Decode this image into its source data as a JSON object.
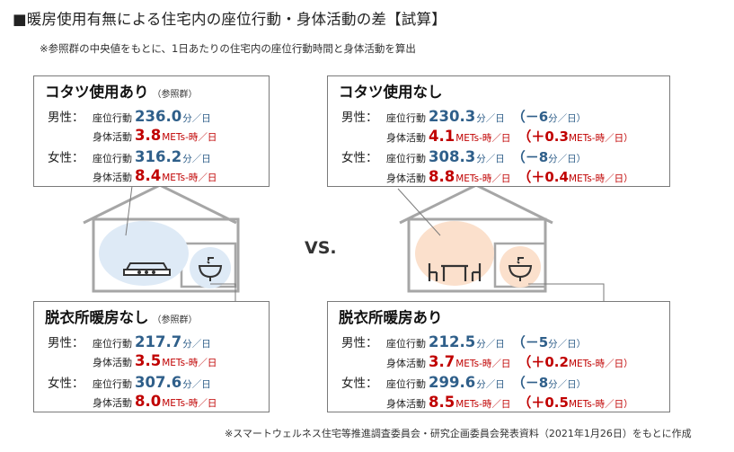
{
  "title": "■暖房使用有無による住宅内の座位行動・身体活動の差【試算】",
  "note": "※参照群の中央値をもとに、1日あたりの住宅内の座位行動時間と身体活動を算出",
  "vs": "VS.",
  "source": "※スマートウェルネス住宅等推進調査委員会・研究企画委員会発表資料（2021年1月26日）をもとに作成",
  "labels": {
    "male": "男性：",
    "female": "女性：",
    "sitting": "座位行動",
    "activity": "身体活動"
  },
  "units": {
    "sitting": "分／日",
    "activity": "METs-時／日"
  },
  "colors": {
    "blue": "#2f5f8a",
    "red": "#c00000",
    "circle_blue": "#deeaf6",
    "circle_peach": "#fbe0cc",
    "house": "#a6a6a6"
  },
  "icons": [
    "kotatsu-icon",
    "washbasin-icon",
    "dining-table-icon"
  ],
  "boxes": {
    "kotatsu_yes": {
      "title": "コタツ使用あり",
      "tag": "（参照群）",
      "male": {
        "sitting": "236.0",
        "activity": "3.8"
      },
      "female": {
        "sitting": "316.2",
        "activity": "8.4"
      }
    },
    "kotatsu_no": {
      "title": "コタツ使用なし",
      "male": {
        "sitting": "230.3",
        "sitting_diff": "（－6",
        "activity": "4.1",
        "activity_diff": "（＋0.3"
      },
      "female": {
        "sitting": "308.3",
        "sitting_diff": "（－8",
        "activity": "8.8",
        "activity_diff": "（＋0.4"
      }
    },
    "dressing_no_heat": {
      "title": "脱衣所暖房なし",
      "tag": "（参照群）",
      "male": {
        "sitting": "217.7",
        "activity": "3.5"
      },
      "female": {
        "sitting": "307.6",
        "activity": "8.0"
      }
    },
    "dressing_heat": {
      "title": "脱衣所暖房あり",
      "male": {
        "sitting": "212.5",
        "sitting_diff": "（－5",
        "activity": "3.7",
        "activity_diff": "（＋0.2"
      },
      "female": {
        "sitting": "299.6",
        "sitting_diff": "（－8",
        "activity": "8.5",
        "activity_diff": "（＋0.5"
      }
    }
  },
  "diff_close": {
    "sitting": "分／日）",
    "activity": "METs-時／日）"
  }
}
